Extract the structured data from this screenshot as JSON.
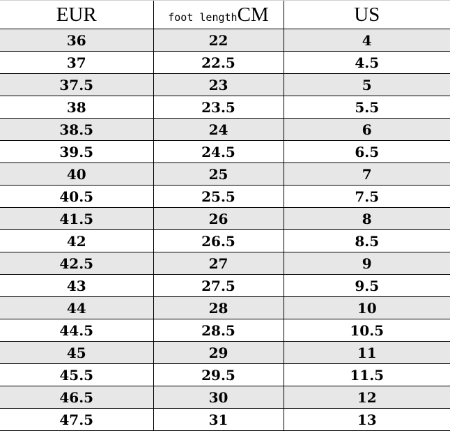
{
  "table": {
    "headers": {
      "eur": "EUR",
      "foot_length_prefix": "foot length",
      "foot_length_unit": "CM",
      "us": "US"
    },
    "shade_color": "#e7e7e7",
    "rows": [
      {
        "eur": "36",
        "cm": "22",
        "us": "4"
      },
      {
        "eur": "37",
        "cm": "22.5",
        "us": "4.5"
      },
      {
        "eur": "37.5",
        "cm": "23",
        "us": "5"
      },
      {
        "eur": "38",
        "cm": "23.5",
        "us": "5.5"
      },
      {
        "eur": "38.5",
        "cm": "24",
        "us": "6"
      },
      {
        "eur": "39.5",
        "cm": "24.5",
        "us": "6.5"
      },
      {
        "eur": "40",
        "cm": "25",
        "us": "7"
      },
      {
        "eur": "40.5",
        "cm": "25.5",
        "us": "7.5"
      },
      {
        "eur": "41.5",
        "cm": "26",
        "us": "8"
      },
      {
        "eur": "42",
        "cm": "26.5",
        "us": "8.5"
      },
      {
        "eur": "42.5",
        "cm": "27",
        "us": "9"
      },
      {
        "eur": "43",
        "cm": "27.5",
        "us": "9.5"
      },
      {
        "eur": "44",
        "cm": "28",
        "us": "10"
      },
      {
        "eur": "44.5",
        "cm": "28.5",
        "us": "10.5"
      },
      {
        "eur": "45",
        "cm": "29",
        "us": "11"
      },
      {
        "eur": "45.5",
        "cm": "29.5",
        "us": "11.5"
      },
      {
        "eur": "46.5",
        "cm": "30",
        "us": "12"
      },
      {
        "eur": "47.5",
        "cm": "31",
        "us": "13"
      }
    ]
  }
}
